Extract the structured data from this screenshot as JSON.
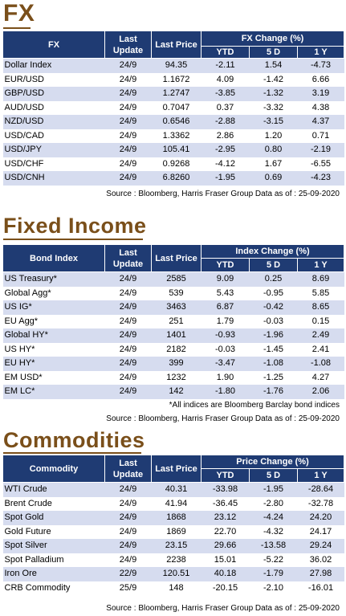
{
  "fx": {
    "title": "FX",
    "headers": {
      "name": "FX",
      "last_update": "Last Update",
      "last_price": "Last Price",
      "group": "FX Change (%)",
      "ytd": "YTD",
      "d5": "5 D",
      "y1": "1 Y"
    },
    "rows": [
      {
        "name": "Dollar Index",
        "date": "24/9",
        "price": "94.35",
        "ytd": "-2.11",
        "d5": "1.54",
        "y1": "-4.73"
      },
      {
        "name": "EUR/USD",
        "date": "24/9",
        "price": "1.1672",
        "ytd": "4.09",
        "d5": "-1.42",
        "y1": "6.66"
      },
      {
        "name": "GBP/USD",
        "date": "24/9",
        "price": "1.2747",
        "ytd": "-3.85",
        "d5": "-1.32",
        "y1": "3.19"
      },
      {
        "name": "AUD/USD",
        "date": "24/9",
        "price": "0.7047",
        "ytd": "0.37",
        "d5": "-3.32",
        "y1": "4.38"
      },
      {
        "name": "NZD/USD",
        "date": "24/9",
        "price": "0.6546",
        "ytd": "-2.88",
        "d5": "-3.15",
        "y1": "4.37"
      },
      {
        "name": "USD/CAD",
        "date": "24/9",
        "price": "1.3362",
        "ytd": "2.86",
        "d5": "1.20",
        "y1": "0.71"
      },
      {
        "name": "USD/JPY",
        "date": "24/9",
        "price": "105.41",
        "ytd": "-2.95",
        "d5": "0.80",
        "y1": "-2.19"
      },
      {
        "name": "USD/CHF",
        "date": "24/9",
        "price": "0.9268",
        "ytd": "-4.12",
        "d5": "1.67",
        "y1": "-6.55"
      },
      {
        "name": "USD/CNH",
        "date": "24/9",
        "price": "6.8260",
        "ytd": "-1.95",
        "d5": "0.69",
        "y1": "-4.23"
      }
    ],
    "source": "Source : Bloomberg, Harris Fraser Group Data as of : 25-09-2020"
  },
  "fixed_income": {
    "title": "Fixed Income",
    "headers": {
      "name": "Bond Index",
      "last_update": "Last Update",
      "last_price": "Last Price",
      "group": "Index Change (%)",
      "ytd": "YTD",
      "d5": "5 D",
      "y1": "1 Y"
    },
    "rows": [
      {
        "name": "US Treasury*",
        "date": "24/9",
        "price": "2585",
        "ytd": "9.09",
        "d5": "0.25",
        "y1": "8.69"
      },
      {
        "name": "Global Agg*",
        "date": "24/9",
        "price": "539",
        "ytd": "5.43",
        "d5": "-0.95",
        "y1": "5.85"
      },
      {
        "name": "US IG*",
        "date": "24/9",
        "price": "3463",
        "ytd": "6.87",
        "d5": "-0.42",
        "y1": "8.65"
      },
      {
        "name": "EU Agg*",
        "date": "24/9",
        "price": "251",
        "ytd": "1.79",
        "d5": "-0.03",
        "y1": "0.15"
      },
      {
        "name": "Global HY*",
        "date": "24/9",
        "price": "1401",
        "ytd": "-0.93",
        "d5": "-1.96",
        "y1": "2.49"
      },
      {
        "name": "US HY*",
        "date": "24/9",
        "price": "2182",
        "ytd": "-0.03",
        "d5": "-1.45",
        "y1": "2.41"
      },
      {
        "name": "EU HY*",
        "date": "24/9",
        "price": "399",
        "ytd": "-3.47",
        "d5": "-1.08",
        "y1": "-1.08"
      },
      {
        "name": "EM USD*",
        "date": "24/9",
        "price": "1232",
        "ytd": "1.90",
        "d5": "-1.25",
        "y1": "4.27"
      },
      {
        "name": "EM LC*",
        "date": "24/9",
        "price": "142",
        "ytd": "-1.80",
        "d5": "-1.76",
        "y1": "2.06"
      }
    ],
    "note": "*All indices are Bloomberg Barclay bond indices",
    "source": "Source : Bloomberg, Harris Fraser Group Data as of : 25-09-2020"
  },
  "commodities": {
    "title": "Commodities",
    "headers": {
      "name": "Commodity",
      "last_update": "Last Update",
      "last_price": "Last Price",
      "group": "Price Change (%)",
      "ytd": "YTD",
      "d5": "5 D",
      "y1": "1 Y"
    },
    "rows": [
      {
        "name": "WTI Crude",
        "date": "24/9",
        "price": "40.31",
        "ytd": "-33.98",
        "d5": "-1.95",
        "y1": "-28.64"
      },
      {
        "name": "Brent Crude",
        "date": "24/9",
        "price": "41.94",
        "ytd": "-36.45",
        "d5": "-2.80",
        "y1": "-32.78"
      },
      {
        "name": "Spot Gold",
        "date": "24/9",
        "price": "1868",
        "ytd": "23.12",
        "d5": "-4.24",
        "y1": "24.20"
      },
      {
        "name": "Gold Future",
        "date": "24/9",
        "price": "1869",
        "ytd": "22.70",
        "d5": "-4.32",
        "y1": "24.17"
      },
      {
        "name": "Spot Silver",
        "date": "24/9",
        "price": "23.15",
        "ytd": "29.66",
        "d5": "-13.58",
        "y1": "29.24"
      },
      {
        "name": "Spot Palladium",
        "date": "24/9",
        "price": "2238",
        "ytd": "15.01",
        "d5": "-5.22",
        "y1": "36.02"
      },
      {
        "name": "Iron Ore",
        "date": "22/9",
        "price": "120.51",
        "ytd": "40.18",
        "d5": "-1.79",
        "y1": "27.98"
      },
      {
        "name": "CRB Commodity",
        "date": "25/9",
        "price": "148",
        "ytd": "-20.15",
        "d5": "-2.10",
        "y1": "-16.01"
      }
    ],
    "source": "Source : Bloomberg, Harris Fraser Group Data as of : 25-09-2020"
  },
  "colors": {
    "header_bg": "#1f3b73",
    "alt_row": "#d6dcef",
    "title": "#7a4f1a"
  }
}
